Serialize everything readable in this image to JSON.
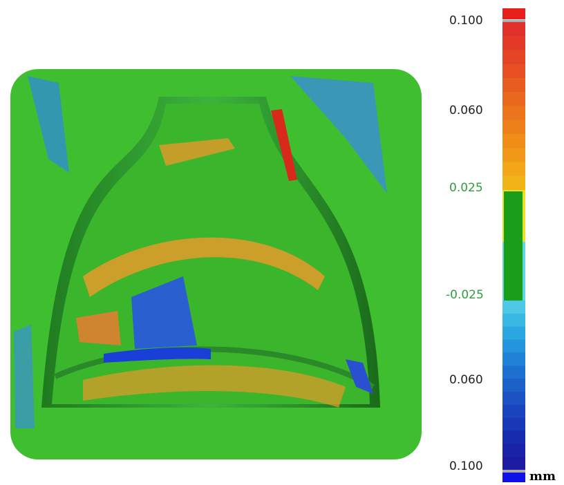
{
  "colorbar": {
    "labels": [
      "0.100",
      "0.060",
      "0.025",
      "-0.025",
      "0.060",
      "0.100"
    ],
    "unit": "mm"
  }
}
